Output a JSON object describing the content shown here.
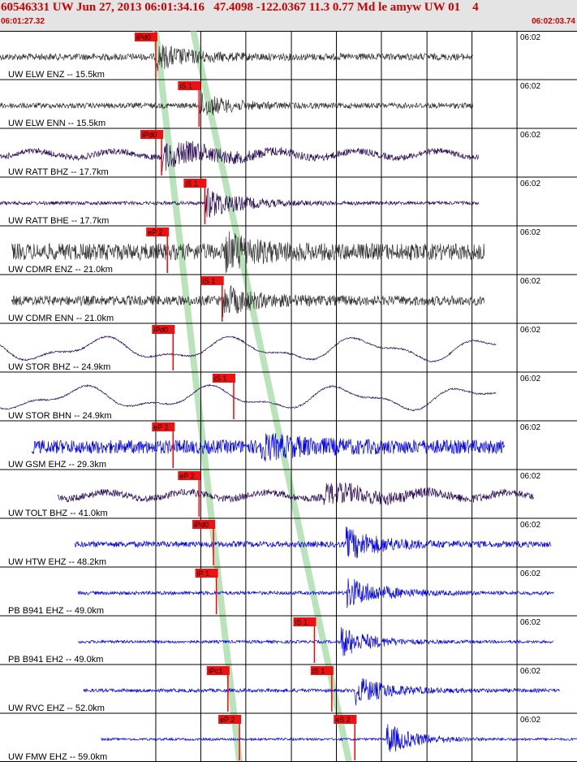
{
  "header": {
    "title": "60546331 UW Jun 27, 2013 06:01:34.16   47.4098 -122.0367 11.3 0.77 Md le amyw UW 01    4",
    "start_time": "06:01:27.32",
    "end_time": "06:02:03.74"
  },
  "colors": {
    "pick": "#ff0000",
    "pick_label_bg": "#ee1111",
    "pick_band": "#b9e3b9",
    "gridline": "#000000",
    "trace_dark": "#333333",
    "trace_purple": "#2a0a55",
    "trace_blue": "#0000ee",
    "title_red": "#cc0000"
  },
  "chart_data": {
    "type": "line",
    "title": "60546331 UW Jun 27, 2013 06:01:34.16   47.4098 -122.0367 11.3 0.77 Md le amyw UW 01    4",
    "xlim": [
      "06:01:27.32",
      "06:02:03.74"
    ],
    "minute_tick_label": "06:02",
    "channels": [
      {
        "label": "UW ELW ENZ -- 15.5km",
        "trace_color": "dark",
        "trace_start": 0.0,
        "trace_end": 0.82,
        "amplitude": 0.35,
        "style": "noise",
        "pick": {
          "label": "iPd0",
          "phase": "P",
          "t": 0.27
        },
        "burst": {
          "t": 0.27,
          "amp": 1.2,
          "decay": 0.06
        }
      },
      {
        "label": "UW ELW ENN -- 15.5km",
        "trace_color": "dark",
        "trace_start": 0.0,
        "trace_end": 0.82,
        "amplitude": 0.28,
        "style": "noise",
        "pick": {
          "label": "iS 1",
          "phase": "S",
          "t": 0.345
        },
        "burst": {
          "t": 0.345,
          "amp": 1.2,
          "decay": 0.05
        }
      },
      {
        "label": "UW RATT BHZ -- 17.7km",
        "trace_color": "purple",
        "trace_start": 0.0,
        "trace_end": 0.83,
        "amplitude": 0.3,
        "style": "wave",
        "pick": {
          "label": "iPd0",
          "phase": "P",
          "t": 0.28
        },
        "burst": {
          "t": 0.28,
          "amp": 1.3,
          "decay": 0.1
        }
      },
      {
        "label": "UW RATT BHE -- 17.7km",
        "trace_color": "purple",
        "trace_start": 0.0,
        "trace_end": 0.83,
        "amplitude": 0.18,
        "style": "noise",
        "pick": {
          "label": "iS 1",
          "phase": "S",
          "t": 0.355
        },
        "burst": {
          "t": 0.355,
          "amp": 1.6,
          "decay": 0.06
        }
      },
      {
        "label": "UW CDMR ENZ -- 21.0km",
        "trace_color": "dark",
        "trace_start": 0.02,
        "trace_end": 0.84,
        "amplitude": 0.85,
        "style": "noise",
        "pick": {
          "label": "eP 2",
          "phase": "P",
          "t": 0.29
        },
        "burst": {
          "t": 0.39,
          "amp": 1.6,
          "decay": 0.05
        }
      },
      {
        "label": "UW CDMR ENN -- 21.0km",
        "trace_color": "dark",
        "trace_start": 0.02,
        "trace_end": 0.84,
        "amplitude": 0.5,
        "style": "noise",
        "pick": {
          "label": "iS 1",
          "phase": "S",
          "t": 0.385
        },
        "burst": {
          "t": 0.385,
          "amp": 1.4,
          "decay": 0.05
        }
      },
      {
        "label": "UW STOR BHZ -- 24.9km",
        "trace_color": "purple",
        "trace_start": 0.0,
        "trace_end": 0.86,
        "amplitude": 0.05,
        "style": "slow",
        "pick": {
          "label": "iPd0",
          "phase": "P",
          "t": 0.3
        }
      },
      {
        "label": "UW STOR BHN -- 24.9km",
        "trace_color": "purple",
        "trace_start": 0.0,
        "trace_end": 0.86,
        "amplitude": 0.05,
        "style": "slow",
        "pick": {
          "label": "iS 1",
          "phase": "S",
          "t": 0.405
        }
      },
      {
        "label": "UW GSM EHZ -- 29.3km",
        "trace_color": "blue",
        "trace_start": 0.055,
        "trace_end": 0.875,
        "amplitude": 0.7,
        "style": "noise",
        "pick": {
          "label": "eP 2",
          "phase": "P",
          "t": 0.3
        },
        "burst": {
          "t": 0.45,
          "amp": 1.0,
          "decay": 0.08
        }
      },
      {
        "label": "UW TOLT BHZ -- 41.0km",
        "trace_color": "purple",
        "trace_start": 0.1,
        "trace_end": 0.925,
        "amplitude": 0.35,
        "style": "wave",
        "pick": {
          "label": "eP 2",
          "phase": "P",
          "t": 0.345
        },
        "burst": {
          "t": 0.56,
          "amp": 1.0,
          "decay": 0.1
        }
      },
      {
        "label": "UW HTW EHZ -- 48.2km",
        "trace_color": "blue",
        "trace_start": 0.13,
        "trace_end": 0.955,
        "amplitude": 0.3,
        "style": "noise",
        "pick": {
          "label": "iPd0",
          "phase": "P",
          "t": 0.37
        },
        "burst": {
          "t": 0.6,
          "amp": 1.5,
          "decay": 0.06
        }
      },
      {
        "label": "PB B941 EHZ -- 49.0km",
        "trace_color": "blue",
        "trace_start": 0.135,
        "trace_end": 0.96,
        "amplitude": 0.18,
        "style": "noise",
        "pick": {
          "label": "iP 1",
          "phase": "P",
          "t": 0.375
        },
        "burst": {
          "t": 0.6,
          "amp": 1.6,
          "decay": 0.06
        }
      },
      {
        "label": "PB B941 EH2 -- 49.0km",
        "trace_color": "blue",
        "trace_start": 0.135,
        "trace_end": 0.96,
        "amplitude": 0.15,
        "style": "noise",
        "pick": {
          "label": "iS 1",
          "phase": "S",
          "t": 0.545
        },
        "burst": {
          "t": 0.59,
          "amp": 1.6,
          "decay": 0.05
        }
      },
      {
        "label": "UW RVC EHZ -- 52.0km",
        "trace_color": "blue",
        "trace_start": 0.145,
        "trace_end": 0.97,
        "amplitude": 0.18,
        "style": "noise",
        "pick": {
          "label": "iPc1",
          "phase": "P",
          "t": 0.395
        },
        "pick2": {
          "label": "iS 1",
          "phase": "S",
          "t": 0.575
        },
        "burst": {
          "t": 0.615,
          "amp": 1.4,
          "decay": 0.06
        }
      },
      {
        "label": "UW FMW EHZ -- 59.0km",
        "trace_color": "blue",
        "trace_start": 0.175,
        "trace_end": 1.0,
        "amplitude": 0.12,
        "style": "noise",
        "pick": {
          "label": "eP 2",
          "phase": "P",
          "t": 0.415
        },
        "pick2": {
          "label": "eS 2",
          "phase": "S",
          "t": 0.615
        },
        "burst": {
          "t": 0.67,
          "amp": 1.6,
          "decay": 0.05
        }
      }
    ],
    "p_band": [
      0.27,
      0.415
    ],
    "s_band": [
      0.335,
      0.605
    ],
    "vertical_gridlines_fraction": [
      0.27,
      0.348,
      0.426,
      0.505,
      0.583,
      0.661,
      0.74,
      0.818,
      0.896
    ]
  }
}
